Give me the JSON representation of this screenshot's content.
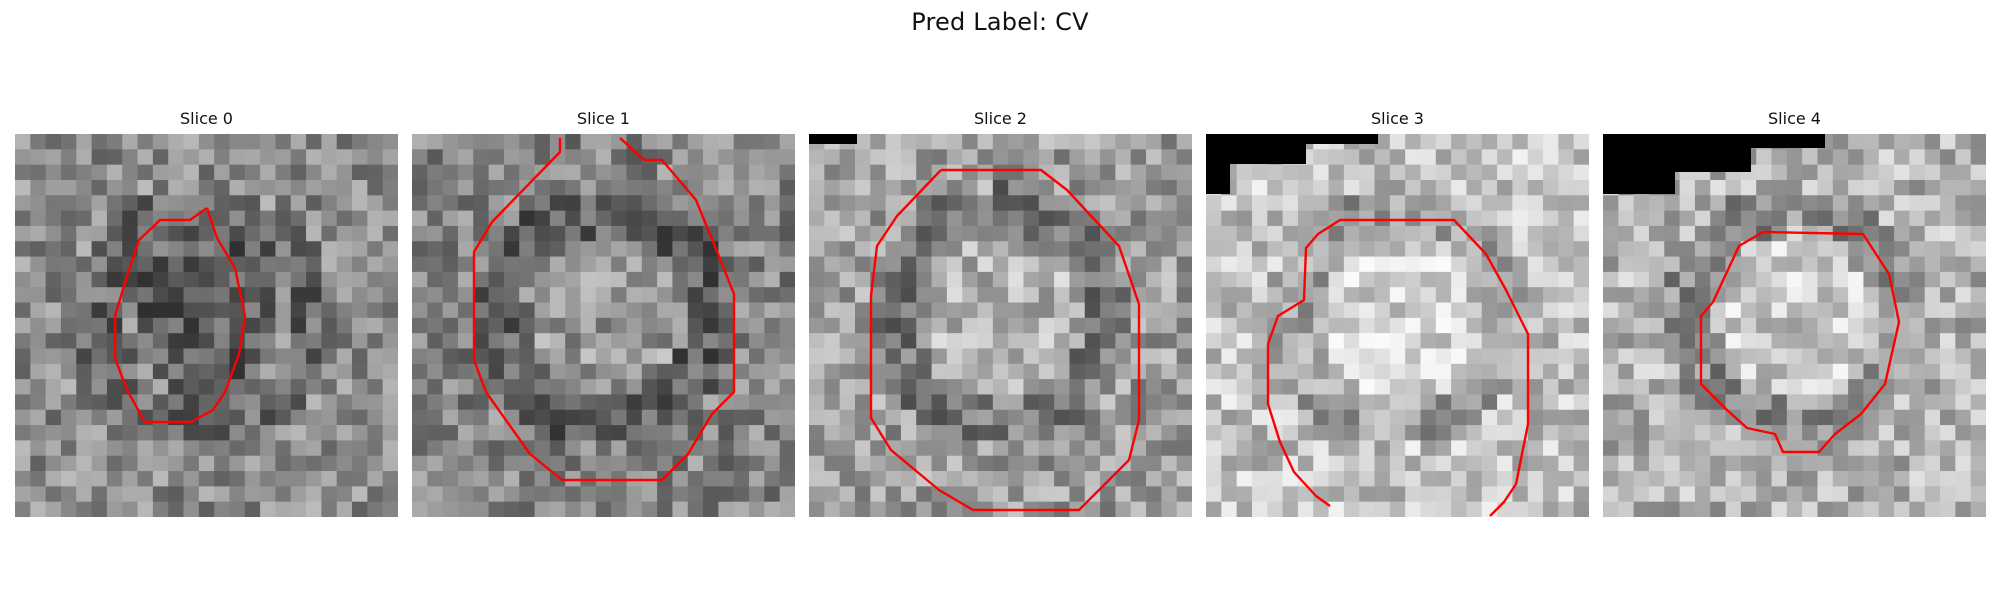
{
  "figure": {
    "title": "Pred Label: CV"
  },
  "contour_color": "#ff0000",
  "panels": [
    {
      "title": "Slice 0",
      "base_gray": 0.55,
      "noise_seed": 11
    },
    {
      "title": "Slice 1",
      "base_gray": 0.52,
      "noise_seed": 23
    },
    {
      "title": "Slice 2",
      "base_gray": 0.62,
      "noise_seed": 37
    },
    {
      "title": "Slice 3",
      "base_gray": 0.76,
      "noise_seed": 41
    },
    {
      "title": "Slice 4",
      "base_gray": 0.7,
      "noise_seed": 53
    }
  ]
}
